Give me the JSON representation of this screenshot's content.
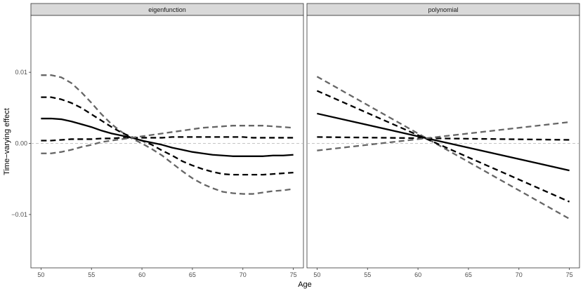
{
  "chart_data": {
    "type": "line",
    "xlabel": "Age",
    "ylabel": "Time−varying effect",
    "xlim": [
      49.0,
      76.0
    ],
    "ylim": [
      -0.0175,
      0.018
    ],
    "x_ticks": [
      50,
      55,
      60,
      65,
      70,
      75
    ],
    "x_tick_labels": [
      "50",
      "55",
      "60",
      "65",
      "70",
      "75"
    ],
    "y_ticks": [
      -0.01,
      0.0,
      0.01
    ],
    "y_tick_labels": [
      "−0.01",
      "0.00",
      "0.01"
    ],
    "reference_line_y": 0.0,
    "grid": false,
    "panels": [
      {
        "strip": "eigenfunction",
        "x": [
          50,
          51,
          52,
          53,
          54,
          55,
          56,
          57,
          58,
          59,
          60,
          61,
          62,
          63,
          64,
          65,
          66,
          67,
          68,
          69,
          70,
          71,
          72,
          73,
          74,
          75
        ],
        "series": [
          {
            "style": "dashed",
            "color": "#666666",
            "values": [
              0.0096,
              0.0096,
              0.0093,
              0.0085,
              0.0072,
              0.0057,
              0.0041,
              0.0027,
              0.0016,
              0.0007,
              0.0,
              -0.0008,
              -0.0017,
              -0.0028,
              -0.0039,
              -0.0049,
              -0.0057,
              -0.0063,
              -0.0068,
              -0.007,
              -0.0071,
              -0.0071,
              -0.0069,
              -0.0067,
              -0.0066,
              -0.0064
            ]
          },
          {
            "style": "dashed",
            "color": "#000000",
            "values": [
              0.0065,
              0.0065,
              0.0062,
              0.0057,
              0.005,
              0.0041,
              0.0032,
              0.0023,
              0.0015,
              0.0009,
              0.0004,
              -0.0002,
              -0.001,
              -0.0017,
              -0.0025,
              -0.0031,
              -0.0036,
              -0.004,
              -0.0043,
              -0.0044,
              -0.0044,
              -0.0044,
              -0.0044,
              -0.0043,
              -0.0042,
              -0.0041
            ]
          },
          {
            "style": "solid",
            "color": "#000000",
            "values": [
              0.0035,
              0.0035,
              0.0034,
              0.0031,
              0.0027,
              0.0023,
              0.0018,
              0.0014,
              0.0011,
              0.0008,
              0.0004,
              0.0001,
              -0.0002,
              -0.0006,
              -0.0009,
              -0.0012,
              -0.0014,
              -0.0016,
              -0.0017,
              -0.0018,
              -0.0018,
              -0.0018,
              -0.0018,
              -0.0017,
              -0.0017,
              -0.0016
            ]
          },
          {
            "style": "dashed",
            "color": "#000000",
            "values": [
              0.0004,
              0.0004,
              0.0005,
              0.0006,
              0.0006,
              0.0006,
              0.0007,
              0.0007,
              0.0008,
              0.0008,
              0.0008,
              0.0008,
              0.0008,
              0.0009,
              0.0009,
              0.0009,
              0.0009,
              0.0009,
              0.0009,
              0.0009,
              0.0009,
              0.0008,
              0.0008,
              0.0008,
              0.0008,
              0.0008
            ]
          },
          {
            "style": "dashed",
            "color": "#666666",
            "values": [
              -0.0014,
              -0.0014,
              -0.0012,
              -0.0009,
              -0.0005,
              -0.0002,
              0.0002,
              0.0004,
              0.0006,
              0.0008,
              0.001,
              0.0012,
              0.0014,
              0.0016,
              0.0018,
              0.002,
              0.0022,
              0.0023,
              0.0024,
              0.0025,
              0.0025,
              0.0025,
              0.0025,
              0.0024,
              0.0023,
              0.0022
            ]
          }
        ]
      },
      {
        "strip": "polynomial",
        "x": [
          50,
          75
        ],
        "series": [
          {
            "style": "dashed",
            "color": "#666666",
            "values": [
              0.0094,
              -0.0106
            ]
          },
          {
            "style": "dashed",
            "color": "#000000",
            "values": [
              0.0074,
              -0.0082
            ]
          },
          {
            "style": "solid",
            "color": "#000000",
            "values": [
              0.0042,
              -0.0038
            ]
          },
          {
            "style": "dashed",
            "color": "#000000",
            "values": [
              0.0009,
              0.0005
            ]
          },
          {
            "style": "dashed",
            "color": "#666666",
            "values": [
              -0.001,
              0.003
            ]
          }
        ]
      }
    ]
  }
}
